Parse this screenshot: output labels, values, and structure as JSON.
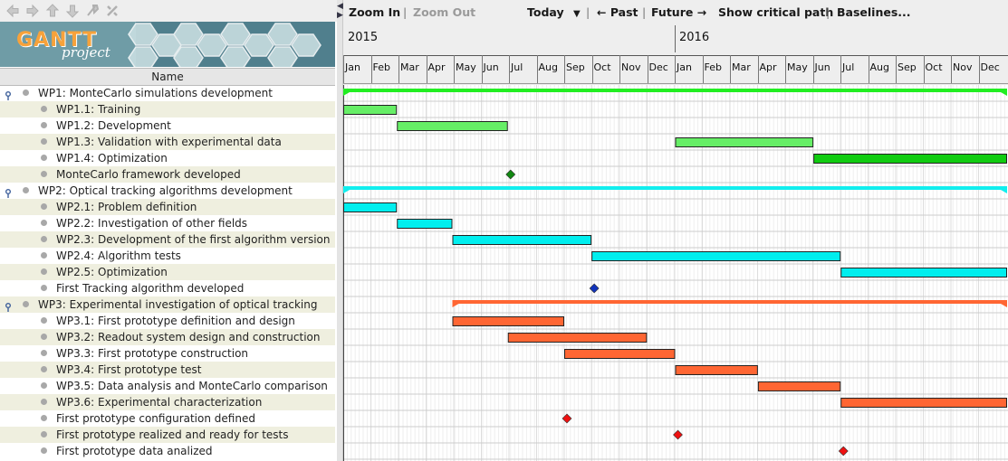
{
  "nav": {
    "icons": [
      "back-icon",
      "forward-icon",
      "up-icon",
      "down-icon",
      "link-icon",
      "unlink-icon"
    ]
  },
  "logo": {
    "brand": "GANTT",
    "sub": "project"
  },
  "table": {
    "column_header": "Name"
  },
  "toolbar": {
    "zoom_in": "Zoom In",
    "sep1": "|",
    "zoom_out": "Zoom Out",
    "today": "Today",
    "sep2": "|",
    "past": "← Past",
    "sep3": "|",
    "future": "Future →",
    "critical": "Show critical path",
    "sep4": "|",
    "baselines": "Baselines..."
  },
  "timeline": {
    "years": [
      "2015",
      "2016"
    ],
    "months": [
      "Jan",
      "Feb",
      "Mar",
      "Apr",
      "May",
      "Jun",
      "Jul",
      "Aug",
      "Sep",
      "Oct",
      "Nov",
      "Dec",
      "Jan",
      "Feb",
      "Mar",
      "Apr",
      "May",
      "Jun",
      "Jul",
      "Aug",
      "Sep",
      "Oct",
      "Nov",
      "Dec"
    ]
  },
  "colors": {
    "wp1": "#66ee66",
    "wp1_dark": "#11cc11",
    "wp1_summary": "#22ee22",
    "wp1_milestone": "#118811",
    "wp2": "#00eeee",
    "wp2_summary": "#11eeee",
    "wp2_milestone": "#1133bb",
    "wp3": "#ff6633",
    "wp3_summary": "#ff6633",
    "wp3_milestone": "#ee1111"
  },
  "tasks": [
    {
      "name": "WP1: MonteCarlo simulations development",
      "level": 0,
      "type": "summary",
      "color": "wp1_summary",
      "start": "2015-01-01",
      "end": "2016-12-31"
    },
    {
      "name": "WP1.1: Training",
      "level": 1,
      "type": "task",
      "color": "wp1",
      "start": "2015-01-01",
      "end": "2015-02-28"
    },
    {
      "name": "WP1.2: Development",
      "level": 1,
      "type": "task",
      "color": "wp1",
      "start": "2015-03-01",
      "end": "2015-06-30"
    },
    {
      "name": "WP1.3: Validation with experimental data",
      "level": 1,
      "type": "task",
      "color": "wp1",
      "start": "2016-01-01",
      "end": "2016-05-31"
    },
    {
      "name": "WP1.4: Optimization",
      "level": 1,
      "type": "task",
      "color": "wp1_dark",
      "start": "2016-06-01",
      "end": "2016-12-31"
    },
    {
      "name": "MonteCarlo framework developed",
      "level": 1,
      "type": "milestone",
      "color": "wp1_milestone",
      "start": "2015-07-01"
    },
    {
      "name": "WP2: Optical tracking algorithms development",
      "level": 0,
      "type": "summary",
      "color": "wp2_summary",
      "start": "2015-01-01",
      "end": "2016-12-31"
    },
    {
      "name": "WP2.1: Problem definition",
      "level": 1,
      "type": "task",
      "color": "wp2",
      "start": "2015-01-01",
      "end": "2015-02-28"
    },
    {
      "name": "WP2.2: Investigation of other fields",
      "level": 1,
      "type": "task",
      "color": "wp2",
      "start": "2015-03-01",
      "end": "2015-04-30"
    },
    {
      "name": "WP2.3: Development of the first algorithm version",
      "level": 1,
      "type": "task",
      "color": "wp2",
      "start": "2015-05-01",
      "end": "2015-09-30"
    },
    {
      "name": "WP2.4: Algorithm tests",
      "level": 1,
      "type": "task",
      "color": "wp2",
      "start": "2015-10-01",
      "end": "2016-06-30"
    },
    {
      "name": "WP2.5: Optimization",
      "level": 1,
      "type": "task",
      "color": "wp2",
      "start": "2016-07-01",
      "end": "2016-12-31"
    },
    {
      "name": "First Tracking algorithm developed",
      "level": 1,
      "type": "milestone",
      "color": "wp2_milestone",
      "start": "2015-10-01"
    },
    {
      "name": "WP3: Experimental investigation of optical tracking",
      "level": 0,
      "type": "summary",
      "color": "wp3_summary",
      "start": "2015-05-01",
      "end": "2016-12-31"
    },
    {
      "name": "WP3.1: First prototype definition and design",
      "level": 1,
      "type": "task",
      "color": "wp3",
      "start": "2015-05-01",
      "end": "2015-08-31"
    },
    {
      "name": "WP3.2: Readout system design and construction",
      "level": 1,
      "type": "task",
      "color": "wp3",
      "start": "2015-07-01",
      "end": "2015-11-30"
    },
    {
      "name": "WP3.3: First prototype construction",
      "level": 1,
      "type": "task",
      "color": "wp3",
      "start": "2015-09-01",
      "end": "2015-12-31"
    },
    {
      "name": "WP3.4: First prototype test",
      "level": 1,
      "type": "task",
      "color": "wp3",
      "start": "2016-01-01",
      "end": "2016-03-31"
    },
    {
      "name": "WP3.5: Data analysis and MonteCarlo comparison",
      "level": 1,
      "type": "task",
      "color": "wp3",
      "start": "2016-04-01",
      "end": "2016-06-30"
    },
    {
      "name": "WP3.6: Experimental characterization",
      "level": 1,
      "type": "task",
      "color": "wp3",
      "start": "2016-07-01",
      "end": "2016-12-31"
    },
    {
      "name": "First prototype configuration defined",
      "level": 1,
      "type": "milestone",
      "color": "wp3_milestone",
      "start": "2015-09-01"
    },
    {
      "name": "First prototype realized and ready for tests",
      "level": 1,
      "type": "milestone",
      "color": "wp3_milestone",
      "start": "2016-01-01"
    },
    {
      "name": "First prototype data analized",
      "level": 1,
      "type": "milestone",
      "color": "wp3_milestone",
      "start": "2016-07-01"
    }
  ]
}
